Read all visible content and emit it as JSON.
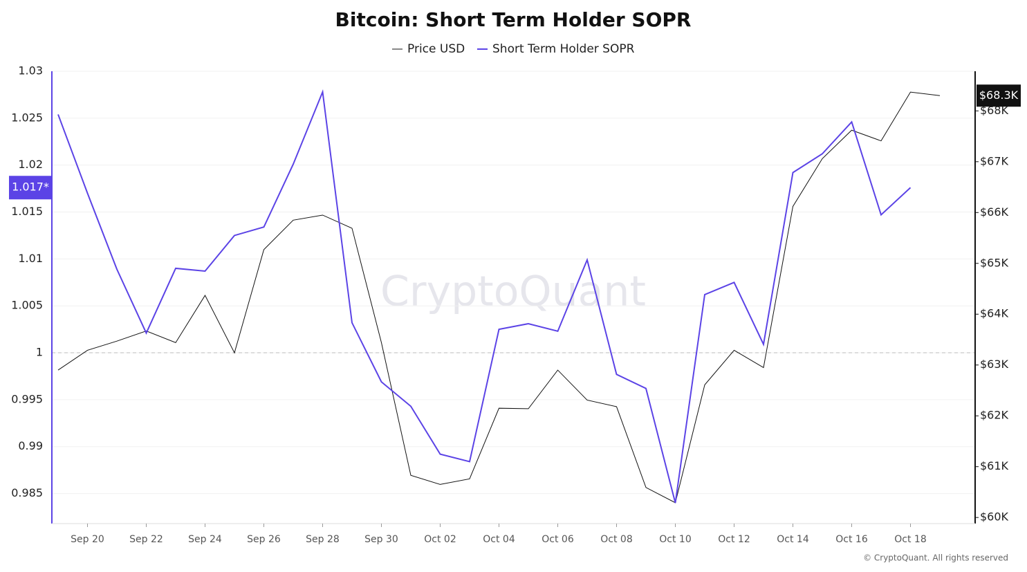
{
  "chart_data": {
    "type": "line",
    "title": "Bitcoin: Short Term Holder SOPR",
    "categories": [
      null,
      "Sep 20",
      null,
      "Sep 22",
      null,
      "Sep 24",
      null,
      "Sep 26",
      null,
      "Sep 28",
      null,
      "Sep 30",
      null,
      "Oct 02",
      null,
      "Oct 04",
      null,
      "Oct 06",
      null,
      "Oct 08",
      null,
      "Oct 10",
      null,
      "Oct 12",
      null,
      "Oct 14",
      null,
      "Oct 16",
      null,
      "Oct 18",
      null
    ],
    "series": [
      {
        "name": "Price USD",
        "color": "#111111",
        "axis": "y2",
        "values": [
          62900,
          63290,
          63470,
          63670,
          63440,
          64370,
          63240,
          65270,
          65850,
          65950,
          65690,
          63440,
          60830,
          60650,
          60760,
          62150,
          62140,
          62900,
          62310,
          62180,
          60590,
          60290,
          62610,
          63290,
          62950,
          66120,
          67060,
          67620,
          67410,
          68370,
          68300
        ]
      },
      {
        "name": "Short Term Holder SOPR",
        "color": "#5b43e6",
        "values": [
          1.0254,
          1.017,
          1.0089,
          1.0021,
          1.009,
          1.0087,
          1.0125,
          1.0134,
          1.0201,
          1.0278,
          1.0032,
          0.9969,
          0.9943,
          0.9892,
          0.9884,
          1.0025,
          1.0031,
          1.0023,
          1.0099,
          0.9977,
          0.9962,
          0.984,
          1.0062,
          1.0075,
          1.0009,
          1.0192,
          1.0212,
          1.0246,
          1.0147,
          1.0176,
          null
        ]
      }
    ],
    "ylim": [
      0.9818,
      1.03
    ],
    "yticks": [
      0.985,
      0.99,
      0.995,
      1,
      1.005,
      1.01,
      1.015,
      1.02,
      1.025,
      1.03
    ],
    "y2lim": [
      59880,
      68780
    ],
    "y2ticks": [
      {
        "value": 60000,
        "label": "$60K"
      },
      {
        "value": 61000,
        "label": "$61K"
      },
      {
        "value": 62000,
        "label": "$62K"
      },
      {
        "value": 63000,
        "label": "$63K"
      },
      {
        "value": 64000,
        "label": "$64K"
      },
      {
        "value": 65000,
        "label": "$65K"
      },
      {
        "value": 66000,
        "label": "$66K"
      },
      {
        "value": 67000,
        "label": "$67K"
      },
      {
        "value": 68000,
        "label": "$68K"
      }
    ],
    "reference_line": 1,
    "grid": true,
    "annotations": [
      "1.017*",
      "$68.3K"
    ],
    "watermark": "CryptoQuant",
    "footer": "© CryptoQuant. All rights reserved"
  }
}
